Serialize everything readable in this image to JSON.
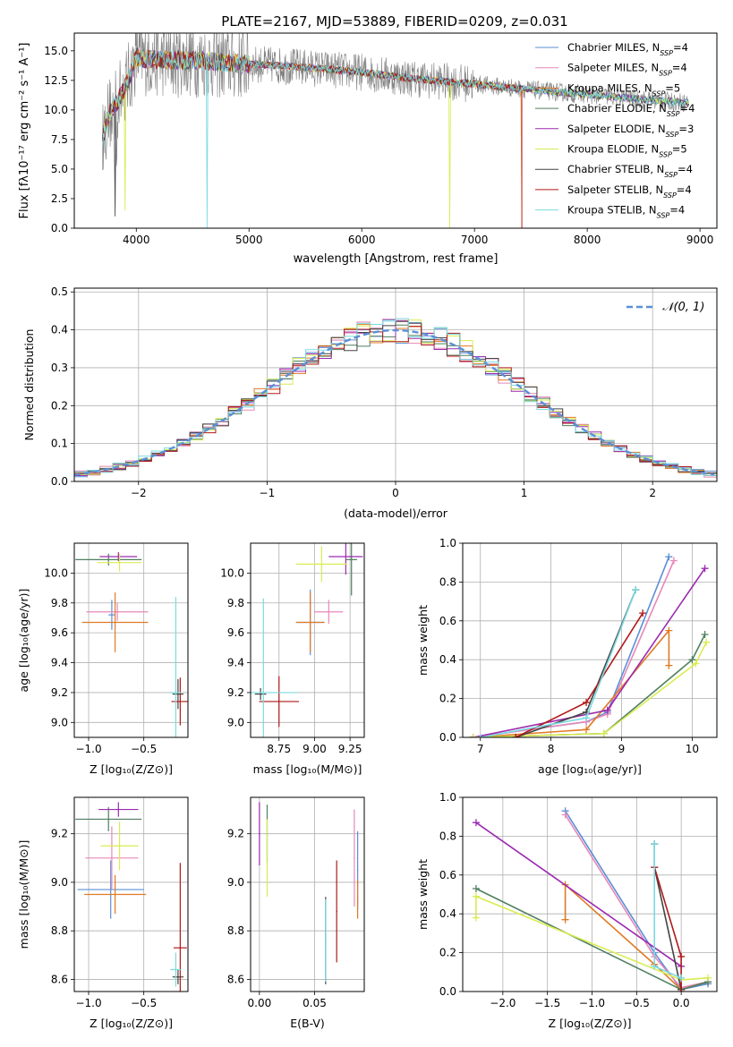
{
  "figure": {
    "title": "PLATE=2167, MJD=53889, FIBERID=0209, z=0.031"
  },
  "colors": {
    "Chabrier MILES": "#5b8fd6",
    "Salpeter MILES": "#e688b8",
    "Kroupa MILES": "#e07b25",
    "Chabrier ELODIE": "#4f7f5f",
    "Salpeter ELODIE": "#9b2ab0",
    "Kroupa ELODIE": "#d9ec52",
    "Chabrier STELIB": "#444444",
    "Salpeter STELIB": "#b01919",
    "Kroupa STELIB": "#7ad9e0",
    "data": "#808080",
    "normal": "#5b8fd6"
  },
  "chart_data": [
    {
      "id": "spectrum",
      "type": "line",
      "title": "PLATE=2167, MJD=53889, FIBERID=0209, z=0.031",
      "xlabel": "wavelength [Angstrom, rest frame]",
      "ylabel": "Flux [fλ10⁻¹⁷ erg cm⁻² s⁻¹ A⁻¹]",
      "xlim": [
        3450,
        9150
      ],
      "ylim": [
        0,
        16.5
      ],
      "xticks": [
        4000,
        5000,
        6000,
        7000,
        8000,
        9000
      ],
      "yticks": [
        0.0,
        2.5,
        5.0,
        7.5,
        10.0,
        12.5,
        15.0
      ],
      "grid": false,
      "legend_placement": "top-right",
      "legend": [
        {
          "name": "Chabrier MILES",
          "ssp": "N_SSP=4"
        },
        {
          "name": "Salpeter MILES",
          "ssp": "N_SSP=4"
        },
        {
          "name": "Kroupa MILES",
          "ssp": "N_SSP=5"
        },
        {
          "name": "Chabrier ELODIE",
          "ssp": "N_SSP=4"
        },
        {
          "name": "Salpeter ELODIE",
          "ssp": "N_SSP=3"
        },
        {
          "name": "Kroupa ELODIE",
          "ssp": "N_SSP=5"
        },
        {
          "name": "Chabrier STELIB",
          "ssp": "N_SSP=4"
        },
        {
          "name": "Salpeter STELIB",
          "ssp": "N_SSP=4"
        },
        {
          "name": "Kroupa STELIB",
          "ssp": "N_SSP=4"
        }
      ],
      "continuum": {
        "x": [
          3700,
          3750,
          3850,
          3950,
          4000,
          4100,
          4300,
          4500,
          4800,
          5000,
          5500,
          6000,
          6500,
          7000,
          7500,
          8000,
          8500,
          8900
        ],
        "y": [
          7.5,
          9.5,
          11.0,
          13.0,
          14.5,
          14.3,
          14.2,
          14.2,
          14.0,
          13.9,
          13.6,
          13.2,
          12.6,
          12.2,
          11.7,
          11.3,
          10.9,
          10.6
        ]
      }
    },
    {
      "id": "residuals",
      "type": "bar",
      "xlabel": "(data-model)/error",
      "ylabel": "Normed distribution",
      "xlim": [
        -2.5,
        2.5
      ],
      "ylim": [
        0,
        0.51
      ],
      "xticks": [
        -2,
        -1,
        0,
        1,
        2
      ],
      "yticks": [
        0.0,
        0.1,
        0.2,
        0.3,
        0.4,
        0.5
      ],
      "grid": true,
      "legend_placement": "top-right",
      "legend": [
        "𝒩(0, 1)"
      ],
      "bin_width": 0.1,
      "bin_start": -2.5
    },
    {
      "id": "age-vs-Z",
      "type": "scatter",
      "xlabel": "Z [log₁₀(Z/Z⊙)]",
      "ylabel": "age  [log₁₀(age/yr)]",
      "xlim": [
        -1.13,
        -0.1
      ],
      "ylim": [
        8.9,
        10.2
      ],
      "xticks": [
        -1.0,
        -0.5
      ],
      "yticks": [
        9.0,
        9.2,
        9.4,
        9.6,
        9.8,
        10.0
      ],
      "grid": true,
      "series": [
        {
          "name": "Chabrier MILES",
          "x": -0.79,
          "xerr": 0.03,
          "y": 9.72,
          "yerr": 0.1
        },
        {
          "name": "Salpeter MILES",
          "x": -0.74,
          "xerr": 0.28,
          "y": 9.74,
          "yerr": 0.06
        },
        {
          "name": "Kroupa MILES",
          "x": -0.76,
          "xerr": 0.3,
          "y": 9.67,
          "yerr": 0.2
        },
        {
          "name": "Chabrier ELODIE",
          "x": -0.82,
          "xerr": 0.3,
          "y": 10.09,
          "yerr": 0.04
        },
        {
          "name": "Salpeter ELODIE",
          "x": -0.73,
          "xerr": 0.17,
          "y": 10.11,
          "yerr": 0.03
        },
        {
          "name": "Kroupa ELODIE",
          "x": -0.72,
          "xerr": 0.2,
          "y": 10.07,
          "yerr": 0.06
        },
        {
          "name": "Chabrier STELIB",
          "x": -0.19,
          "xerr": 0.05,
          "y": 9.19,
          "yerr": 0.1
        },
        {
          "name": "Salpeter STELIB",
          "x": -0.17,
          "xerr": 0.08,
          "y": 9.14,
          "yerr": 0.16
        },
        {
          "name": "Kroupa STELIB",
          "x": -0.21,
          "xerr": 0.05,
          "y": 9.2,
          "yerr": 0.64
        }
      ]
    },
    {
      "id": "age-vs-mass",
      "type": "scatter",
      "xlabel": "mass [log₁₀(M/M⊙)]",
      "ylabel": "",
      "xlim": [
        8.55,
        9.35
      ],
      "ylim": [
        8.9,
        10.2
      ],
      "xticks": [
        8.75,
        9.0,
        9.25
      ],
      "yticks": [
        9.0,
        9.2,
        9.4,
        9.6,
        9.8,
        10.0
      ],
      "grid": true,
      "series": [
        {
          "name": "Chabrier MILES",
          "x": 8.97,
          "xerr": 0.1,
          "y": 9.67,
          "yerr": 0.22
        },
        {
          "name": "Salpeter MILES",
          "x": 9.1,
          "xerr": 0.1,
          "y": 9.74,
          "yerr": 0.08
        },
        {
          "name": "Kroupa MILES",
          "x": 8.97,
          "xerr": 0.1,
          "y": 9.67,
          "yerr": 0.2
        },
        {
          "name": "Chabrier ELODIE",
          "x": 9.26,
          "xerr": 0.04,
          "y": 10.09,
          "yerr": 0.24
        },
        {
          "name": "Salpeter ELODIE",
          "x": 9.22,
          "xerr": 0.12,
          "y": 10.11,
          "yerr": 0.12
        },
        {
          "name": "Kroupa ELODIE",
          "x": 9.05,
          "xerr": 0.18,
          "y": 10.06,
          "yerr": 0.12
        },
        {
          "name": "Chabrier STELIB",
          "x": 8.62,
          "xerr": 0.04,
          "y": 9.19,
          "yerr": 0.04
        },
        {
          "name": "Salpeter STELIB",
          "x": 8.75,
          "xerr": 0.14,
          "y": 9.14,
          "yerr": 0.17
        },
        {
          "name": "Kroupa STELIB",
          "x": 8.64,
          "xerr": 0.24,
          "y": 9.2,
          "yerr": 0.63
        }
      ]
    },
    {
      "id": "massweight-vs-age",
      "type": "line",
      "xlabel": "age  [log₁₀(age/yr)]",
      "ylabel": "mass weight",
      "xlim": [
        6.75,
        10.35
      ],
      "ylim": [
        0,
        1.0
      ],
      "xticks": [
        7,
        8,
        9,
        10
      ],
      "yticks": [
        0.0,
        0.2,
        0.4,
        0.6,
        0.8,
        1.0
      ],
      "grid": true,
      "series": [
        {
          "name": "Chabrier MILES",
          "x": [
            6.9,
            8.5,
            8.8,
            9.67
          ],
          "y": [
            0.0,
            0.08,
            0.13,
            0.93
          ]
        },
        {
          "name": "Salpeter MILES",
          "x": [
            6.9,
            8.5,
            8.8,
            9.74
          ],
          "y": [
            0.0,
            0.08,
            0.12,
            0.91
          ]
        },
        {
          "name": "Kroupa MILES",
          "x": [
            6.9,
            8.5,
            9.67,
            9.67
          ],
          "y": [
            0.0,
            0.04,
            0.55,
            0.37
          ]
        },
        {
          "name": "Chabrier ELODIE",
          "x": [
            6.9,
            8.75,
            10.0,
            10.18
          ],
          "y": [
            0.0,
            0.02,
            0.4,
            0.53
          ]
        },
        {
          "name": "Salpeter ELODIE",
          "x": [
            6.9,
            8.8,
            10.18
          ],
          "y": [
            0.0,
            0.14,
            0.87
          ]
        },
        {
          "name": "Kroupa ELODIE",
          "x": [
            6.9,
            8.75,
            10.05,
            10.2
          ],
          "y": [
            0.0,
            0.02,
            0.38,
            0.49
          ]
        },
        {
          "name": "Chabrier STELIB",
          "x": [
            7.5,
            8.5,
            9.2
          ],
          "y": [
            0.0,
            0.13,
            0.76
          ]
        },
        {
          "name": "Salpeter STELIB",
          "x": [
            7.5,
            8.5,
            9.3
          ],
          "y": [
            0.0,
            0.18,
            0.64
          ]
        },
        {
          "name": "Kroupa STELIB",
          "x": [
            7.0,
            8.5,
            9.2
          ],
          "y": [
            0.0,
            0.1,
            0.76
          ]
        }
      ]
    },
    {
      "id": "mass-vs-Z",
      "type": "scatter",
      "xlabel": "Z [log₁₀(Z/Z⊙)]",
      "ylabel": "mass [log₁₀(M/M⊙)]",
      "xlim": [
        -1.13,
        -0.1
      ],
      "ylim": [
        8.55,
        9.35
      ],
      "xticks": [
        -1.0,
        -0.5
      ],
      "yticks": [
        8.6,
        8.8,
        9.0,
        9.2
      ],
      "grid": true,
      "series": [
        {
          "name": "Chabrier MILES",
          "x": -0.8,
          "xerr": 0.3,
          "y": 8.97,
          "yerr": 0.12
        },
        {
          "name": "Salpeter MILES",
          "x": -0.79,
          "xerr": 0.24,
          "y": 9.1,
          "yerr": 0.13
        },
        {
          "name": "Kroupa MILES",
          "x": -0.76,
          "xerr": 0.28,
          "y": 8.95,
          "yerr": 0.08
        },
        {
          "name": "Chabrier ELODIE",
          "x": -0.82,
          "xerr": 0.3,
          "y": 9.26,
          "yerr": 0.05
        },
        {
          "name": "Salpeter ELODIE",
          "x": -0.73,
          "xerr": 0.18,
          "y": 9.3,
          "yerr": 0.03
        },
        {
          "name": "Kroupa ELODIE",
          "x": -0.72,
          "xerr": 0.17,
          "y": 9.15,
          "yerr": 0.1
        },
        {
          "name": "Chabrier STELIB",
          "x": -0.19,
          "xerr": 0.05,
          "y": 8.61,
          "yerr": 0.03
        },
        {
          "name": "Salpeter STELIB",
          "x": -0.17,
          "xerr": 0.06,
          "y": 8.73,
          "yerr": 0.35
        },
        {
          "name": "Kroupa STELIB",
          "x": -0.21,
          "xerr": 0.05,
          "y": 8.64,
          "yerr": 0.07
        }
      ]
    },
    {
      "id": "mass-vs-EBV",
      "type": "scatter",
      "xlabel": "E(B-V)",
      "ylabel": "",
      "xlim": [
        -0.008,
        0.095
      ],
      "ylim": [
        8.55,
        9.35
      ],
      "xticks": [
        0.0,
        0.05
      ],
      "yticks": [
        8.6,
        8.8,
        9.0,
        9.2
      ],
      "grid": true,
      "series": [
        {
          "name": "Chabrier MILES",
          "x": 0.089,
          "y": 9.05,
          "yerr": 0.16
        },
        {
          "name": "Salpeter MILES",
          "x": 0.086,
          "y": 9.1,
          "yerr": 0.2
        },
        {
          "name": "Kroupa MILES",
          "x": 0.089,
          "y": 8.93,
          "yerr": 0.08
        },
        {
          "name": "Chabrier ELODIE",
          "x": 0.007,
          "y": 9.2,
          "yerr": 0.12
        },
        {
          "name": "Salpeter ELODIE",
          "x": 0.0,
          "y": 9.2,
          "yerr": 0.13
        },
        {
          "name": "Kroupa ELODIE",
          "x": 0.007,
          "y": 9.1,
          "yerr": 0.16
        },
        {
          "name": "Chabrier STELIB",
          "x": 0.06,
          "y": 8.76,
          "yerr": 0.18
        },
        {
          "name": "Salpeter STELIB",
          "x": 0.07,
          "y": 8.88,
          "yerr": 0.21
        },
        {
          "name": "Kroupa STELIB",
          "x": 0.06,
          "y": 8.76,
          "yerr": 0.17
        }
      ]
    },
    {
      "id": "massweight-vs-Z",
      "type": "line",
      "xlabel": "Z [log₁₀(Z/Z⊙)]",
      "ylabel": "mass weight",
      "xlim": [
        -2.45,
        0.4
      ],
      "ylim": [
        0,
        1.0
      ],
      "xticks": [
        -2.0,
        -1.5,
        -1.0,
        -0.5,
        0.0
      ],
      "yticks": [
        0.0,
        0.2,
        0.4,
        0.6,
        0.8,
        1.0
      ],
      "grid": true,
      "series": [
        {
          "name": "Chabrier MILES",
          "x": [
            -1.3,
            -0.3,
            0.0,
            0.3
          ],
          "y": [
            0.93,
            0.2,
            0.01,
            0.04
          ]
        },
        {
          "name": "Salpeter MILES",
          "x": [
            -1.3,
            -0.3,
            0.0,
            0.3
          ],
          "y": [
            0.91,
            0.18,
            0.02,
            0.05
          ]
        },
        {
          "name": "Kroupa MILES",
          "x": [
            -1.3,
            -1.3,
            -0.3,
            0.0,
            0.3
          ],
          "y": [
            0.37,
            0.55,
            0.14,
            0.01,
            0.05
          ]
        },
        {
          "name": "Chabrier ELODIE",
          "x": [
            -2.3,
            0.0,
            0.3
          ],
          "y": [
            0.53,
            0.01,
            0.05
          ]
        },
        {
          "name": "Salpeter ELODIE",
          "x": [
            -2.3,
            0.0
          ],
          "y": [
            0.87,
            0.13
          ]
        },
        {
          "name": "Kroupa ELODIE",
          "x": [
            -2.3,
            -2.3,
            0.0,
            0.3
          ],
          "y": [
            0.38,
            0.49,
            0.06,
            0.07
          ]
        },
        {
          "name": "Chabrier STELIB",
          "x": [
            -0.3,
            -0.3,
            0.0
          ],
          "y": [
            0.76,
            0.64,
            0.01
          ]
        },
        {
          "name": "Salpeter STELIB",
          "x": [
            -0.3,
            0.0,
            0.0
          ],
          "y": [
            0.64,
            0.18,
            0.0
          ]
        },
        {
          "name": "Kroupa STELIB",
          "x": [
            -0.3,
            -0.3,
            0.0
          ],
          "y": [
            0.76,
            0.13,
            0.07
          ]
        }
      ]
    }
  ]
}
